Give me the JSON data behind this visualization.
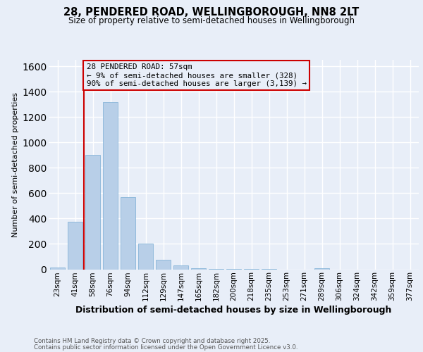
{
  "title_line1": "28, PENDERED ROAD, WELLINGBOROUGH, NN8 2LT",
  "title_line2": "Size of property relative to semi-detached houses in Wellingborough",
  "xlabel": "Distribution of semi-detached houses by size in Wellingborough",
  "ylabel": "Number of semi-detached properties",
  "categories": [
    "23sqm",
    "41sqm",
    "58sqm",
    "76sqm",
    "94sqm",
    "112sqm",
    "129sqm",
    "147sqm",
    "165sqm",
    "182sqm",
    "200sqm",
    "218sqm",
    "235sqm",
    "253sqm",
    "271sqm",
    "289sqm",
    "306sqm",
    "324sqm",
    "342sqm",
    "359sqm",
    "377sqm"
  ],
  "values": [
    15,
    375,
    900,
    1320,
    570,
    200,
    75,
    30,
    10,
    5,
    3,
    2,
    1,
    0,
    0,
    8,
    0,
    0,
    0,
    0,
    0
  ],
  "bar_color": "#b8cfe8",
  "bar_edge_color": "#7aadd4",
  "vline_x": 1.5,
  "vline_color": "#cc0000",
  "annotation_text": "28 PENDERED ROAD: 57sqm\n← 9% of semi-detached houses are smaller (328)\n90% of semi-detached houses are larger (3,139) →",
  "box_color": "#cc0000",
  "ylim_max": 1650,
  "yticks": [
    0,
    200,
    400,
    600,
    800,
    1000,
    1200,
    1400,
    1600
  ],
  "background_color": "#e8eef8",
  "grid_color": "#ffffff",
  "footer_line1": "Contains HM Land Registry data © Crown copyright and database right 2025.",
  "footer_line2": "Contains public sector information licensed under the Open Government Licence v3.0."
}
